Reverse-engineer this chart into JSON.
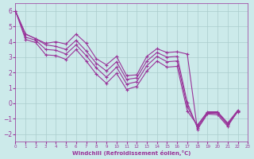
{
  "xlabel": "Windchill (Refroidissement éolien,°C)",
  "bg_color": "#cceaea",
  "grid_color": "#aacccc",
  "line_color": "#993399",
  "xlim": [
    0,
    23
  ],
  "ylim": [
    -2.5,
    6.5
  ],
  "xticks": [
    0,
    1,
    2,
    3,
    4,
    5,
    6,
    7,
    8,
    9,
    10,
    11,
    12,
    13,
    14,
    15,
    16,
    17,
    18,
    19,
    20,
    21,
    22,
    23
  ],
  "yticks": [
    -2,
    -1,
    0,
    1,
    2,
    3,
    4,
    5,
    6
  ],
  "lines": [
    [
      6.0,
      4.5,
      4.2,
      3.9,
      4.0,
      3.85,
      4.5,
      3.9,
      2.9,
      2.5,
      3.05,
      1.8,
      1.85,
      3.05,
      3.55,
      3.3,
      3.35,
      3.2,
      -1.7,
      -0.7,
      -0.75,
      -1.5,
      -0.5
    ],
    [
      6.0,
      4.5,
      4.2,
      3.8,
      3.7,
      3.5,
      4.1,
      3.4,
      2.6,
      2.1,
      2.7,
      1.55,
      1.65,
      2.75,
      3.3,
      3.0,
      3.05,
      0.05,
      -1.6,
      -0.65,
      -0.65,
      -1.4,
      -0.55
    ],
    [
      6.0,
      4.3,
      4.1,
      3.5,
      3.45,
      3.2,
      3.8,
      3.1,
      2.3,
      1.7,
      2.35,
      1.25,
      1.4,
      2.45,
      3.05,
      2.7,
      2.75,
      -0.2,
      -1.5,
      -0.6,
      -0.6,
      -1.35,
      -0.5
    ],
    [
      6.0,
      4.15,
      3.95,
      3.15,
      3.1,
      2.85,
      3.5,
      2.75,
      1.9,
      1.3,
      1.95,
      0.9,
      1.1,
      2.1,
      2.75,
      2.35,
      2.4,
      -0.5,
      -1.42,
      -0.55,
      -0.55,
      -1.28,
      -0.45
    ]
  ]
}
